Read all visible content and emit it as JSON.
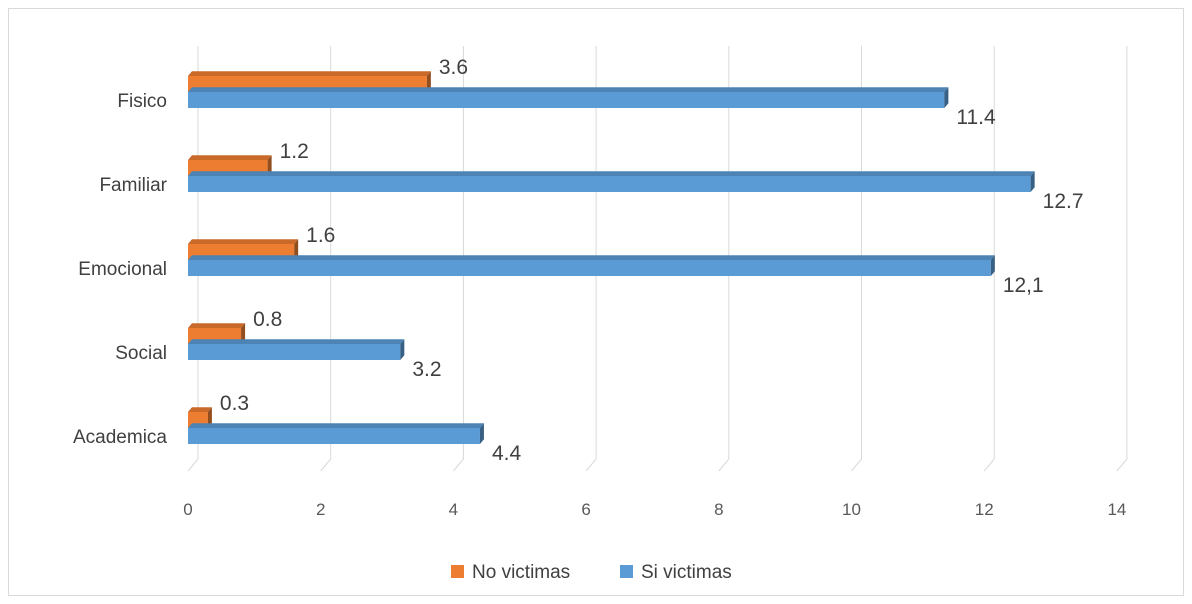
{
  "chart_data": {
    "type": "bar",
    "orientation": "horizontal",
    "style": "3d",
    "categories": [
      "Academica",
      "Social",
      "Emocional",
      "Familiar",
      "Fisico"
    ],
    "series": [
      {
        "name": "No victimas",
        "color": "#ed7d31",
        "values": [
          0.3,
          0.8,
          1.6,
          1.2,
          3.6
        ],
        "labels": [
          "0.3",
          "0.8",
          "1.6",
          "1.2",
          "3.6"
        ]
      },
      {
        "name": "Si victimas",
        "color": "#5b9bd5",
        "values": [
          4.4,
          3.2,
          12.1,
          12.7,
          11.4
        ],
        "labels": [
          "4.4",
          "3.2",
          "12,1",
          "12.7",
          "11.4"
        ]
      }
    ],
    "xlim": [
      0,
      14
    ],
    "xticks": [
      0,
      2,
      4,
      6,
      8,
      10,
      12,
      14
    ],
    "xtick_labels": [
      "0",
      "2",
      "4",
      "6",
      "8",
      "10",
      "12",
      "14"
    ],
    "title": "",
    "xlabel": "",
    "ylabel": "",
    "grid": true,
    "legend_position": "bottom"
  },
  "legend": {
    "no_label": "No victimas",
    "si_label": "Si victimas"
  }
}
